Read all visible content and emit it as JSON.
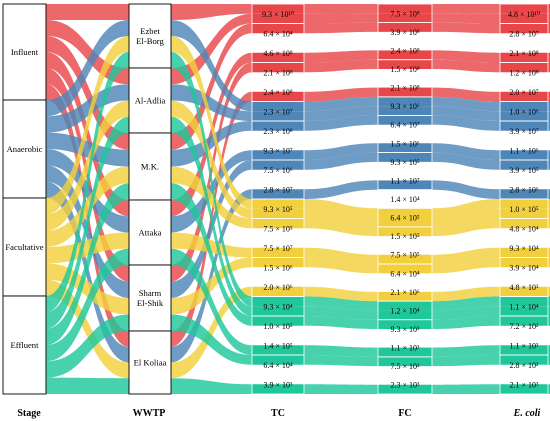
{
  "chart_data": {
    "type": "alluvial",
    "axes": [
      "Stage",
      "WWTP",
      "TC",
      "FC",
      "E. coli"
    ],
    "stages": [
      "Influent",
      "Anaerobic",
      "Facultative",
      "Effluent"
    ],
    "wwtps": [
      "Ezbet El-Borg",
      "Al-Adlia",
      "M.K.",
      "Attaka",
      "Sharm El-Shik",
      "El Koliaa"
    ],
    "stage_colors": {
      "Influent": "#e8474a",
      "Anaerobic": "#4f86b8",
      "Facultative": "#f2cf3c",
      "Effluent": "#1fc79b"
    },
    "tc_values": [
      "9.3 × 10¹⁰",
      "6.4 × 10⁴",
      "4.6 × 10⁸",
      "2.1 × 10⁸",
      "2.4 × 10⁸",
      "2.3 × 10⁷",
      "2.3 × 10⁸",
      "9.3 × 10⁷",
      "7.5 × 10⁶",
      "2.8 × 10⁷",
      "9.3 × 10⁵",
      "7.5 × 10⁵",
      "7.5 × 10⁷",
      "1.5 × 10⁶",
      "2.0 × 10⁶",
      "9.3 × 10⁴",
      "1.0 × 10⁵",
      "1.4 × 10⁵",
      "6.4 × 10⁴",
      "3.9 × 10³"
    ],
    "fc_values": [
      "7.5 × 10⁸",
      "3.9 × 10⁸",
      "2.4 × 10⁸",
      "1.5 × 10⁸",
      "2.1 × 10⁸",
      "9.3 × 10⁶",
      "6.4 × 10⁷",
      "1.5 × 10⁶",
      "9.3 × 10⁵",
      "1.1 × 10⁷",
      "1.4 × 10⁴",
      "6.4 × 10⁵",
      "1.5 × 10⁵",
      "7.5 × 10⁵",
      "6.4 × 10⁴",
      "2.1 × 10⁶",
      "1.2 × 10⁴",
      "9.3 × 10³",
      "1.1 × 10³",
      "7.5 × 10²",
      "2.3 × 10³"
    ],
    "ecoli_values": [
      "4.8 × 10¹⁰",
      "2.8 × 10⁷",
      "2.1 × 10⁸",
      "1.2 × 10⁸",
      "2.0 × 10⁷",
      "1.0 × 10⁶",
      "3.9 × 10⁷",
      "1.1 × 10⁶",
      "3.9 × 10⁵",
      "2.8 × 10⁶",
      "1.0 × 10⁵",
      "4.8 × 10⁴",
      "9.3 × 10⁴",
      "3.9 × 10⁴",
      "4.8 × 10³",
      "1.1 × 10⁴",
      "7.2 × 10²",
      "1.1 × 10³",
      "2.8 × 10²",
      "2.1 × 10³"
    ],
    "grid": false,
    "legend": "none"
  }
}
